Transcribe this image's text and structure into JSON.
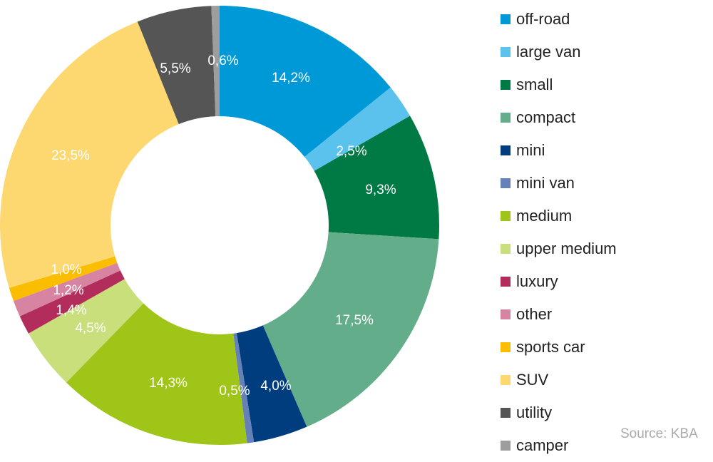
{
  "chart_data": {
    "type": "pie",
    "donut": true,
    "legend_position": "right",
    "slices": [
      {
        "name": "off-road",
        "value": 14.2,
        "label": "14,2%",
        "color": "#0099d8"
      },
      {
        "name": "large van",
        "value": 2.5,
        "label": "2,5%",
        "color": "#5bc2ee"
      },
      {
        "name": "small",
        "value": 9.3,
        "label": "9,3%",
        "color": "#007a45"
      },
      {
        "name": "compact",
        "value": 17.5,
        "label": "17,5%",
        "color": "#64ad8a"
      },
      {
        "name": "mini",
        "value": 4.0,
        "label": "4,0%",
        "color": "#003d7f"
      },
      {
        "name": "mini van",
        "value": 0.5,
        "label": "0,5%",
        "color": "#6680b8"
      },
      {
        "name": "medium",
        "value": 14.3,
        "label": "14,3%",
        "color": "#a0c519"
      },
      {
        "name": "upper medium",
        "value": 4.5,
        "label": "4,5%",
        "color": "#c9df7c"
      },
      {
        "name": "luxury",
        "value": 1.4,
        "label": "1,4%",
        "color": "#b32d5c"
      },
      {
        "name": "other",
        "value": 1.2,
        "label": "1,2%",
        "color": "#d783a2"
      },
      {
        "name": "sports car",
        "value": 1.0,
        "label": "1,0%",
        "color": "#fbbd00"
      },
      {
        "name": "SUV",
        "value": 23.5,
        "label": "23,5%",
        "color": "#fdd870"
      },
      {
        "name": "utility",
        "value": 5.5,
        "label": "5,5%",
        "color": "#555555"
      },
      {
        "name": "camper",
        "value": 0.6,
        "label": "0,6%",
        "color": "#9d9d9d"
      }
    ]
  },
  "source": "Source: KBA"
}
